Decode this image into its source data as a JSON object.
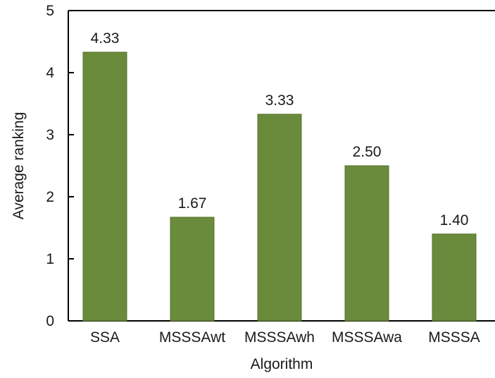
{
  "chart_data": {
    "type": "bar",
    "categories": [
      "SSA",
      "MSSSAwt",
      "MSSSAwh",
      "MSSSAwa",
      "MSSSA"
    ],
    "values": [
      4.33,
      1.67,
      3.33,
      2.5,
      1.4
    ],
    "value_labels": [
      "4.33",
      "1.67",
      "3.33",
      "2.50",
      "1.40"
    ],
    "title": "",
    "xlabel": "Algorithm",
    "ylabel": "Average ranking",
    "ylim": [
      0,
      5
    ],
    "yticks": [
      0,
      1,
      2,
      3,
      4,
      5
    ],
    "ytick_labels": [
      "0",
      "1",
      "2",
      "3",
      "4",
      "5"
    ],
    "grid": false,
    "legend": "none",
    "bar_color": "#6a8a3c",
    "bar_edge_color": "#55732d",
    "axis_color": "#000000"
  }
}
